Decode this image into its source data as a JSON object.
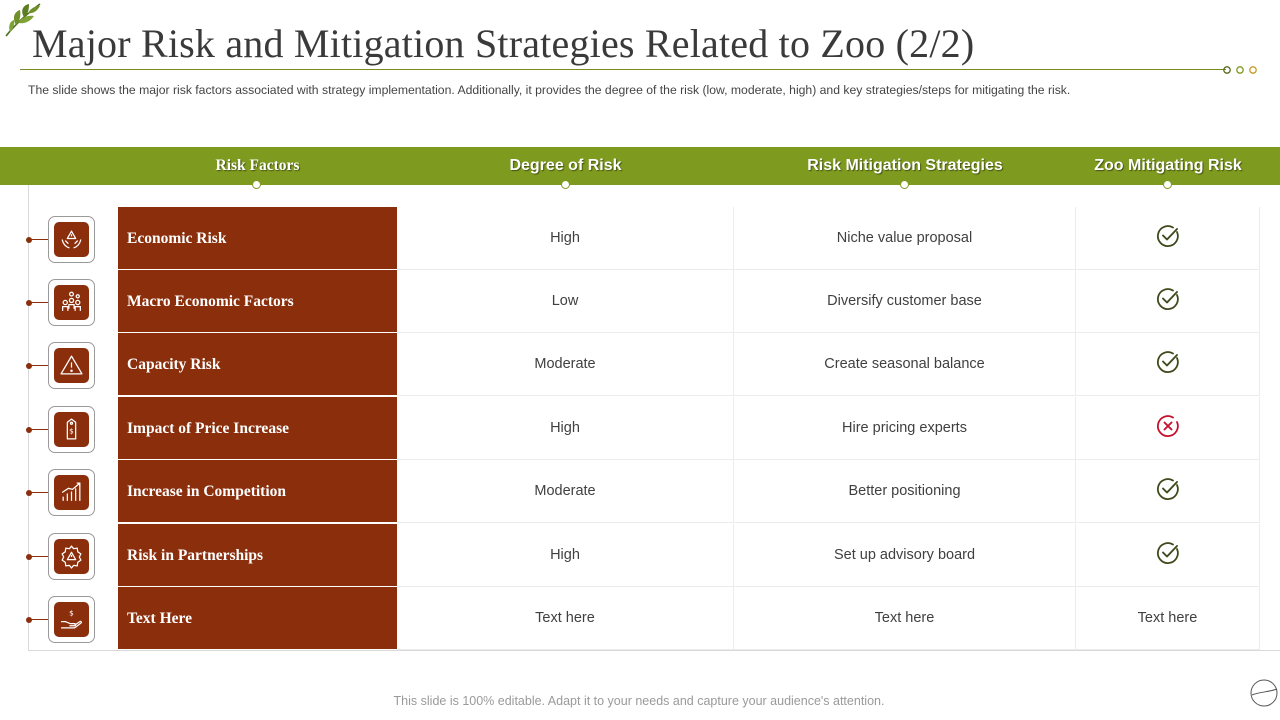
{
  "title": "Major Risk and Mitigation Strategies Related to Zoo (2/2)",
  "subtitle": "The slide shows the major risk factors associated with strategy implementation. Additionally, it provides  the degree of the risk (low, moderate,  high) and key strategies/steps for  mitigating the risk.",
  "colors": {
    "accent": "#7e9a1f",
    "factor": "#8b2e0c",
    "check": "#3f4a1c",
    "cross": "#c8102e"
  },
  "table": {
    "headers": [
      "Risk Factors",
      "Degree of Risk",
      "Risk Mitigation Strategies",
      "Zoo Mitigating Risk"
    ],
    "rows": [
      {
        "icon": "hands-risk-icon",
        "factor": "Economic Risk",
        "degree": "High",
        "strategy": "Niche value proposal",
        "status": "check"
      },
      {
        "icon": "people-money-icon",
        "factor": "Macro Economic Factors",
        "degree": "Low",
        "strategy": "Diversify customer base",
        "status": "check"
      },
      {
        "icon": "warning-triangle-icon",
        "factor": "Capacity Risk",
        "degree": "Moderate",
        "strategy": "Create seasonal balance",
        "status": "check"
      },
      {
        "icon": "price-tag-icon",
        "factor": "Impact of Price Increase",
        "degree": "High",
        "strategy": "Hire pricing experts",
        "status": "cross"
      },
      {
        "icon": "bar-growth-icon",
        "factor": "Increase in Competition",
        "degree": "Moderate",
        "strategy": "Better positioning",
        "status": "check"
      },
      {
        "icon": "gear-warning-icon",
        "factor": "Risk in Partnerships",
        "degree": "High",
        "strategy": "Set up advisory board",
        "status": "check"
      },
      {
        "icon": "hand-dollar-icon",
        "factor": "Text Here",
        "degree": "Text here",
        "strategy": "Text here",
        "status": "text",
        "status_text": "Text here"
      }
    ]
  },
  "footer": "This slide is 100% editable. Adapt it to your needs and capture your audience's attention."
}
